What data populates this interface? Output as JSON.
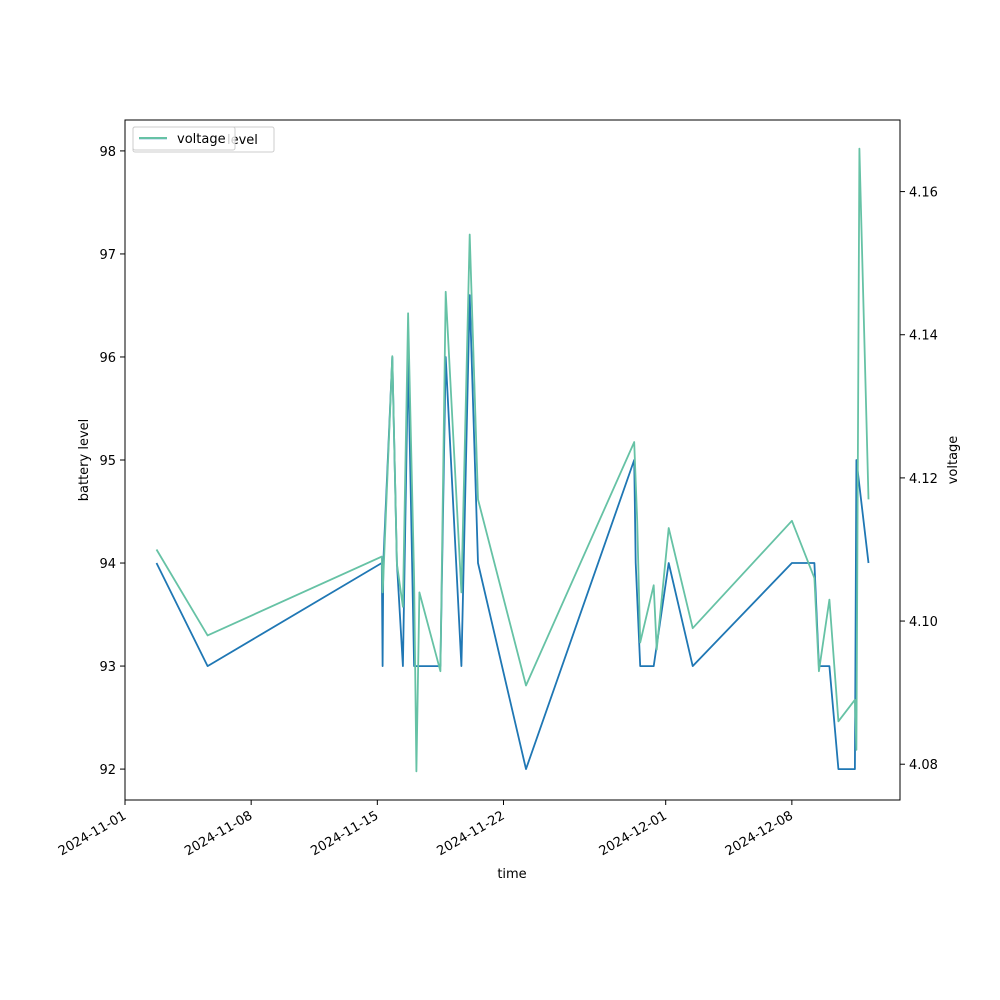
{
  "chart_data": {
    "type": "line",
    "xlabel": "time",
    "ylabel_left": "battery level",
    "ylabel_right": "voltage",
    "x_ticks": [
      "2024-11-01",
      "2024-11-08",
      "2024-11-15",
      "2024-11-22",
      "2024-12-01",
      "2024-12-08"
    ],
    "x_range": [
      "2024-11-01T00:00",
      "2024-12-14T00:00"
    ],
    "left_ylim": [
      91.7,
      98.3
    ],
    "left_ticks": [
      92,
      93,
      94,
      95,
      96,
      97,
      98
    ],
    "right_ylim": [
      4.075,
      4.17
    ],
    "right_ticks": [
      4.08,
      4.1,
      4.12,
      4.14,
      4.16
    ],
    "grid": false,
    "legend": {
      "placement": "top-left",
      "entries": [
        {
          "name": "level",
          "color": "#1f77b4"
        },
        {
          "name": "voltage",
          "color": "#66c2a5"
        }
      ]
    },
    "series": [
      {
        "name": "level",
        "axis": "left",
        "color": "#1f77b4",
        "points": [
          [
            "2024-11-02T18:00",
            94
          ],
          [
            "2024-11-05T14:00",
            93
          ],
          [
            "2024-11-15T06:00",
            94
          ],
          [
            "2024-11-15T07:00",
            93
          ],
          [
            "2024-11-15T08:00",
            94
          ],
          [
            "2024-11-15T20:00",
            96
          ],
          [
            "2024-11-16T02:00",
            94
          ],
          [
            "2024-11-16T10:00",
            93
          ],
          [
            "2024-11-16T17:00",
            96
          ],
          [
            "2024-11-17T01:00",
            93
          ],
          [
            "2024-11-17T04:00",
            93
          ],
          [
            "2024-11-18T12:00",
            93
          ],
          [
            "2024-11-18T19:00",
            96
          ],
          [
            "2024-11-19T16:00",
            93
          ],
          [
            "2024-11-20T03:00",
            96.6
          ],
          [
            "2024-11-20T14:00",
            94
          ],
          [
            "2024-11-23T06:00",
            92
          ],
          [
            "2024-11-29T06:00",
            95
          ],
          [
            "2024-11-29T08:00",
            94
          ],
          [
            "2024-11-29T14:00",
            93
          ],
          [
            "2024-11-30T08:00",
            93
          ],
          [
            "2024-12-01T04:00",
            94
          ],
          [
            "2024-12-02T12:00",
            93
          ],
          [
            "2024-12-08T00:00",
            94
          ],
          [
            "2024-12-09T06:00",
            94
          ],
          [
            "2024-12-09T12:00",
            93
          ],
          [
            "2024-12-10T02:00",
            93
          ],
          [
            "2024-12-10T14:00",
            92
          ],
          [
            "2024-12-11T12:00",
            92
          ],
          [
            "2024-12-11T14:00",
            95
          ],
          [
            "2024-12-12T06:00",
            94
          ]
        ]
      },
      {
        "name": "voltage",
        "axis": "right",
        "color": "#66c2a5",
        "points": [
          [
            "2024-11-02T18:00",
            4.11
          ],
          [
            "2024-11-05T14:00",
            4.098
          ],
          [
            "2024-11-15T06:00",
            4.109
          ],
          [
            "2024-11-15T07:00",
            4.104
          ],
          [
            "2024-11-15T08:00",
            4.106
          ],
          [
            "2024-11-15T20:00",
            4.137
          ],
          [
            "2024-11-16T02:00",
            4.108
          ],
          [
            "2024-11-16T10:00",
            4.102
          ],
          [
            "2024-11-16T17:00",
            4.143
          ],
          [
            "2024-11-17T01:00",
            4.106
          ],
          [
            "2024-11-17T04:00",
            4.079
          ],
          [
            "2024-11-17T08:00",
            4.104
          ],
          [
            "2024-11-18T12:00",
            4.093
          ],
          [
            "2024-11-18T19:00",
            4.146
          ],
          [
            "2024-11-19T16:00",
            4.104
          ],
          [
            "2024-11-20T03:00",
            4.154
          ],
          [
            "2024-11-20T14:00",
            4.117
          ],
          [
            "2024-11-23T06:00",
            4.091
          ],
          [
            "2024-11-29T06:00",
            4.125
          ],
          [
            "2024-11-29T10:00",
            4.114
          ],
          [
            "2024-11-29T14:00",
            4.097
          ],
          [
            "2024-11-30T08:00",
            4.105
          ],
          [
            "2024-11-30T12:00",
            4.096
          ],
          [
            "2024-12-01T04:00",
            4.113
          ],
          [
            "2024-12-02T12:00",
            4.099
          ],
          [
            "2024-12-08T00:00",
            4.114
          ],
          [
            "2024-12-09T06:00",
            4.106
          ],
          [
            "2024-12-09T12:00",
            4.093
          ],
          [
            "2024-12-10T02:00",
            4.103
          ],
          [
            "2024-12-10T14:00",
            4.086
          ],
          [
            "2024-12-11T12:00",
            4.089
          ],
          [
            "2024-12-11T14:00",
            4.082
          ],
          [
            "2024-12-11T18:00",
            4.166
          ],
          [
            "2024-12-12T06:00",
            4.117
          ]
        ]
      }
    ]
  }
}
